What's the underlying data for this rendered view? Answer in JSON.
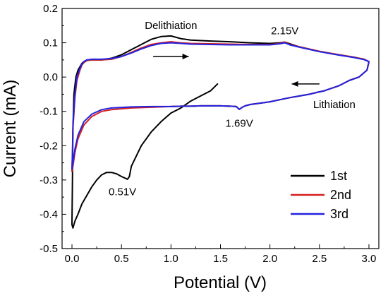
{
  "chart_data": {
    "type": "line",
    "xlabel": "Potential (V)",
    "ylabel": "Current (mA)",
    "xlim": [
      -0.1,
      3.1
    ],
    "ylim": [
      -0.5,
      0.2
    ],
    "xticks": [
      "0.0",
      "0.5",
      "1.0",
      "1.5",
      "2.0",
      "2.5",
      "3.0"
    ],
    "yticks": [
      "0.2",
      "0.1",
      "0.0",
      "-0.1",
      "-0.2",
      "-0.3",
      "-0.4",
      "-0.5"
    ],
    "legend_position": "lower-right",
    "grid": false,
    "annotations": [
      {
        "text": "Delithiation",
        "x": 1.0,
        "y": 0.14
      },
      {
        "text": "2.15V",
        "x": 2.15,
        "y": 0.125
      },
      {
        "text": "Lithiation",
        "x": 2.65,
        "y": -0.09
      },
      {
        "text": "1.69V",
        "x": 1.69,
        "y": -0.145
      },
      {
        "text": "0.51V",
        "x": 0.51,
        "y": -0.345
      }
    ],
    "arrows": [
      {
        "direction": "right",
        "from": [
          0.82,
          0.06
        ],
        "to": [
          1.18,
          0.06
        ]
      },
      {
        "direction": "left",
        "from": [
          2.5,
          -0.02
        ],
        "to": [
          2.22,
          -0.02
        ]
      }
    ],
    "series": [
      {
        "name": "1st",
        "color": "#000000",
        "x": [
          1.47,
          1.4,
          1.3,
          1.2,
          1.1,
          1.0,
          0.9,
          0.8,
          0.7,
          0.6,
          0.58,
          0.56,
          0.54,
          0.5,
          0.45,
          0.4,
          0.35,
          0.3,
          0.25,
          0.2,
          0.15,
          0.1,
          0.06,
          0.03,
          0.01,
          0.0,
          0.005,
          0.01,
          0.02,
          0.04,
          0.06,
          0.08,
          0.1,
          0.12,
          0.15,
          0.2,
          0.3,
          0.4,
          0.5,
          0.6,
          0.7,
          0.8,
          0.9,
          1.0,
          1.1,
          1.2,
          1.4,
          1.6,
          1.8,
          2.0,
          2.1,
          2.15,
          2.2,
          2.3,
          2.5,
          2.7,
          2.85,
          2.95,
          3.0,
          2.98,
          2.9,
          2.8,
          2.7,
          2.6,
          2.55,
          2.5,
          2.4,
          2.3,
          2.2,
          2.1,
          2.0,
          1.9,
          1.8,
          1.75,
          1.72,
          1.69,
          1.66,
          1.6,
          1.5,
          1.4,
          1.3,
          1.2,
          1.1,
          1.0
        ],
        "y": [
          -0.02,
          -0.04,
          -0.055,
          -0.07,
          -0.09,
          -0.105,
          -0.13,
          -0.16,
          -0.2,
          -0.26,
          -0.29,
          -0.298,
          -0.295,
          -0.29,
          -0.282,
          -0.278,
          -0.278,
          -0.285,
          -0.3,
          -0.32,
          -0.345,
          -0.37,
          -0.4,
          -0.42,
          -0.44,
          -0.43,
          -0.3,
          -0.15,
          -0.05,
          0.0,
          0.02,
          0.03,
          0.04,
          0.045,
          0.05,
          0.05,
          0.05,
          0.055,
          0.065,
          0.08,
          0.095,
          0.11,
          0.118,
          0.12,
          0.112,
          0.108,
          0.105,
          0.103,
          0.1,
          0.098,
          0.1,
          0.102,
          0.097,
          0.088,
          0.075,
          0.065,
          0.058,
          0.052,
          0.045,
          0.02,
          0.0,
          -0.01,
          -0.025,
          -0.035,
          -0.04,
          -0.043,
          -0.05,
          -0.055,
          -0.06,
          -0.066,
          -0.072,
          -0.076,
          -0.08,
          -0.084,
          -0.088,
          -0.094,
          -0.086,
          -0.085,
          -0.084,
          -0.084,
          -0.084,
          -0.085,
          -0.085,
          -0.086
        ]
      },
      {
        "name": "2nd",
        "color": "#d62020",
        "x": [
          1.0,
          0.8,
          0.6,
          0.4,
          0.3,
          0.2,
          0.12,
          0.06,
          0.03,
          0.01,
          0.0,
          0.005,
          0.01,
          0.03,
          0.05,
          0.08,
          0.1,
          0.12,
          0.15,
          0.2,
          0.3,
          0.4,
          0.5,
          0.6,
          0.7,
          0.8,
          0.9,
          1.0,
          1.1,
          1.2,
          1.4,
          1.6,
          1.8,
          2.0,
          2.1,
          2.15,
          2.2,
          2.3,
          2.5,
          2.7,
          2.85,
          2.95,
          3.0,
          2.98,
          2.9,
          2.8,
          2.7,
          2.6,
          2.55,
          2.5,
          2.4,
          2.3,
          2.2,
          2.1,
          2.0,
          1.9,
          1.8,
          1.75,
          1.72,
          1.69,
          1.66,
          1.6,
          1.5,
          1.4,
          1.3,
          1.2,
          1.1,
          1.0
        ],
        "y": [
          -0.086,
          -0.088,
          -0.09,
          -0.095,
          -0.1,
          -0.115,
          -0.14,
          -0.18,
          -0.22,
          -0.26,
          -0.275,
          -0.23,
          -0.15,
          -0.06,
          -0.01,
          0.02,
          0.035,
          0.042,
          0.048,
          0.05,
          0.05,
          0.052,
          0.06,
          0.072,
          0.085,
          0.095,
          0.1,
          0.103,
          0.1,
          0.098,
          0.097,
          0.096,
          0.095,
          0.095,
          0.098,
          0.102,
          0.095,
          0.088,
          0.075,
          0.065,
          0.058,
          0.052,
          0.045,
          0.02,
          0.0,
          -0.01,
          -0.025,
          -0.035,
          -0.04,
          -0.043,
          -0.05,
          -0.055,
          -0.06,
          -0.066,
          -0.072,
          -0.076,
          -0.08,
          -0.084,
          -0.088,
          -0.094,
          -0.086,
          -0.085,
          -0.084,
          -0.084,
          -0.084,
          -0.085,
          -0.085,
          -0.086
        ]
      },
      {
        "name": "3rd",
        "color": "#2323e0",
        "x": [
          1.0,
          0.8,
          0.6,
          0.4,
          0.3,
          0.2,
          0.12,
          0.06,
          0.03,
          0.01,
          0.0,
          0.005,
          0.01,
          0.03,
          0.05,
          0.08,
          0.1,
          0.12,
          0.15,
          0.2,
          0.3,
          0.4,
          0.5,
          0.6,
          0.7,
          0.8,
          0.9,
          1.0,
          1.1,
          1.2,
          1.4,
          1.6,
          1.8,
          2.0,
          2.1,
          2.15,
          2.2,
          2.3,
          2.5,
          2.7,
          2.85,
          2.95,
          3.0,
          2.98,
          2.9,
          2.8,
          2.7,
          2.6,
          2.55,
          2.5,
          2.4,
          2.3,
          2.2,
          2.1,
          2.0,
          1.9,
          1.8,
          1.75,
          1.72,
          1.69,
          1.66,
          1.6,
          1.5,
          1.4,
          1.3,
          1.2,
          1.1,
          1.0
        ],
        "y": [
          -0.086,
          -0.086,
          -0.087,
          -0.09,
          -0.095,
          -0.108,
          -0.13,
          -0.17,
          -0.21,
          -0.25,
          -0.268,
          -0.22,
          -0.14,
          -0.05,
          0.0,
          0.025,
          0.038,
          0.045,
          0.05,
          0.052,
          0.052,
          0.054,
          0.06,
          0.07,
          0.082,
          0.092,
          0.098,
          0.1,
          0.098,
          0.096,
          0.095,
          0.094,
          0.094,
          0.094,
          0.097,
          0.1,
          0.094,
          0.087,
          0.074,
          0.064,
          0.057,
          0.051,
          0.045,
          0.02,
          0.0,
          -0.01,
          -0.025,
          -0.035,
          -0.04,
          -0.043,
          -0.05,
          -0.055,
          -0.06,
          -0.066,
          -0.072,
          -0.076,
          -0.08,
          -0.084,
          -0.088,
          -0.094,
          -0.086,
          -0.085,
          -0.084,
          -0.084,
          -0.084,
          -0.085,
          -0.085,
          -0.086
        ]
      }
    ]
  }
}
